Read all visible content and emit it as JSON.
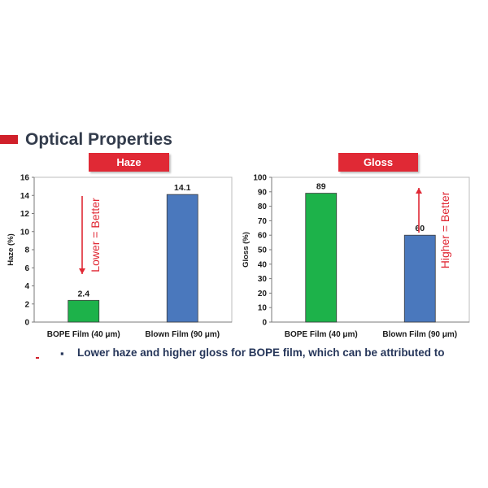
{
  "slide": {
    "title": "Optical Properties",
    "bullet_marker": "▪",
    "bullet_text": "Lower haze and higher gloss for BOPE film, which can be attributed to"
  },
  "colors": {
    "green": "#1db24a",
    "blue": "#4a78bd",
    "red": "#e02935",
    "title": "#333c4c"
  },
  "chart_data": [
    {
      "type": "bar",
      "title": "Haze",
      "xlabel": "",
      "ylabel": "Haze (%)",
      "ylim": [
        0,
        16
      ],
      "yticks": [
        0,
        2,
        4,
        6,
        8,
        10,
        12,
        14,
        16
      ],
      "categories": [
        "BOPE Film (40 μm)",
        "Blown Film  (90 μm)"
      ],
      "values": [
        2.4,
        14.1
      ],
      "value_labels": [
        "2.4",
        "14.1"
      ],
      "bar_colors": [
        "#1db24a",
        "#4a78bd"
      ],
      "annotation": {
        "text": "Lower = Better",
        "arrow": "down"
      },
      "grid": false
    },
    {
      "type": "bar",
      "title": "Gloss",
      "xlabel": "",
      "ylabel": "Gloss (%)",
      "ylim": [
        0,
        100
      ],
      "yticks": [
        0,
        10,
        20,
        30,
        40,
        50,
        60,
        70,
        80,
        90,
        100
      ],
      "categories": [
        "BOPE Film (40 μm)",
        "Blown Film  (90 μm)"
      ],
      "values": [
        89,
        60
      ],
      "value_labels": [
        "89",
        "60"
      ],
      "bar_colors": [
        "#1db24a",
        "#4a78bd"
      ],
      "annotation": {
        "text": "Higher = Better",
        "arrow": "up"
      },
      "grid": false
    }
  ]
}
